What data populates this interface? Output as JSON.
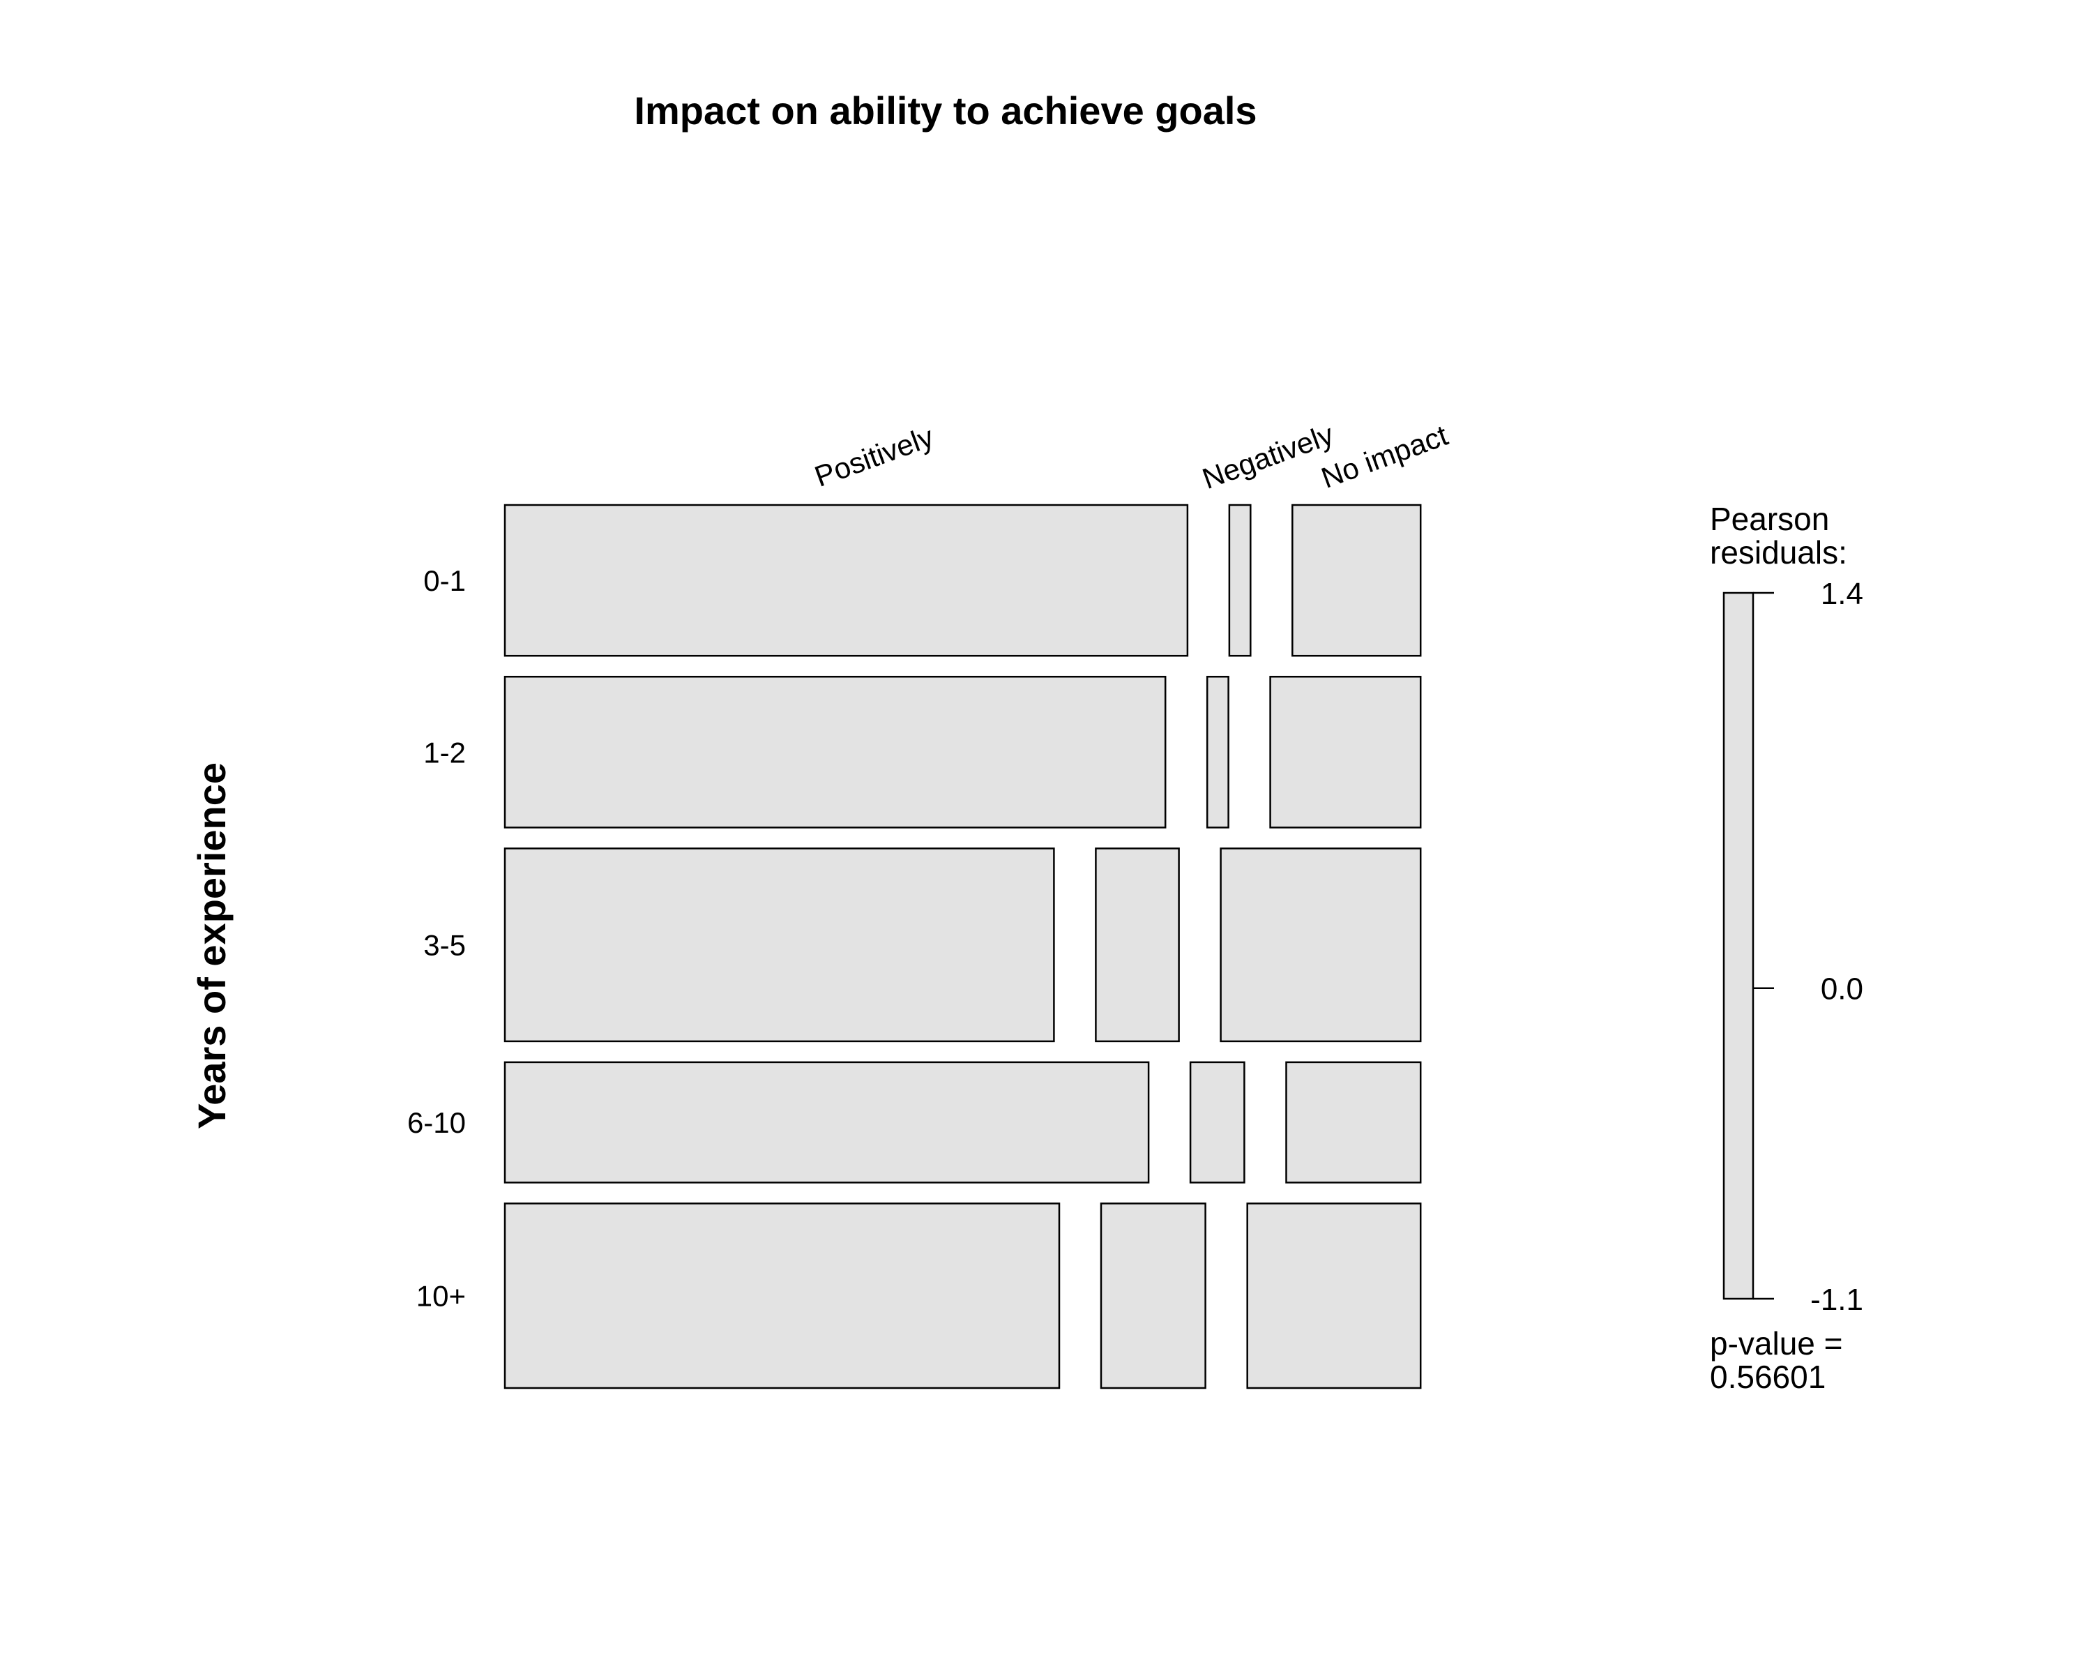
{
  "chart_data": {
    "type": "mosaic",
    "title": "Impact on ability to achieve goals",
    "row_variable_label": "Years of experience",
    "rows": [
      "0-1",
      "1-2",
      "3-5",
      "6-10",
      "10+"
    ],
    "columns": [
      "Positively",
      "Negatively",
      "No impact"
    ],
    "row_proportions": [
      0.183,
      0.183,
      0.234,
      0.146,
      0.224
    ],
    "cell_proportions": [
      [
        0.772,
        0.024,
        0.145
      ],
      [
        0.747,
        0.024,
        0.17
      ],
      [
        0.621,
        0.094,
        0.226
      ],
      [
        0.728,
        0.061,
        0.152
      ],
      [
        0.627,
        0.118,
        0.196
      ]
    ],
    "legend": {
      "title_line1": "Pearson",
      "title_line2": "residuals:",
      "max": 1.4,
      "mid": 0.0,
      "min": -1.1,
      "max_label": "1.4",
      "mid_label": "0.0",
      "min_label": "-1.1",
      "pvalue_line1": "p-value =",
      "pvalue_line2": "0.56601"
    },
    "fill_color": "#e3e3e3",
    "stroke_color": "#000000"
  }
}
